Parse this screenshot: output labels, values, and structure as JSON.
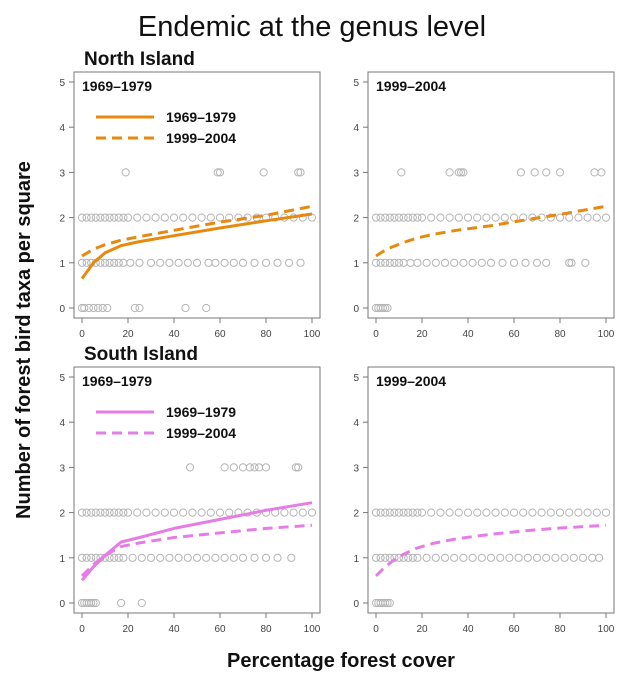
{
  "title": "Endemic at the genus level",
  "xlabel": "Percentage  forest cover",
  "ylabel": "Number of forest bird taxa per square",
  "colors": {
    "north": "#e8890f",
    "south": "#e67de6",
    "points": "#b4b4b4"
  },
  "chart_data": [
    {
      "type": "scatter",
      "island": "North Island",
      "period": "1969–1979",
      "xlim": [
        0,
        100
      ],
      "ylim": [
        0,
        5
      ],
      "xticks": [
        0,
        20,
        40,
        60,
        80,
        100
      ],
      "yticks": [
        0,
        1,
        2,
        3,
        4,
        5
      ],
      "legend": [
        "1969–1979",
        "1999–2004"
      ],
      "points": [
        [
          0,
          2
        ],
        [
          2,
          2
        ],
        [
          4,
          2
        ],
        [
          6,
          2
        ],
        [
          8,
          2
        ],
        [
          10,
          2
        ],
        [
          12,
          2
        ],
        [
          14,
          2
        ],
        [
          16,
          2
        ],
        [
          18,
          2
        ],
        [
          20,
          2
        ],
        [
          24,
          2
        ],
        [
          28,
          2
        ],
        [
          32,
          2
        ],
        [
          36,
          2
        ],
        [
          40,
          2
        ],
        [
          44,
          2
        ],
        [
          48,
          2
        ],
        [
          52,
          2
        ],
        [
          56,
          2
        ],
        [
          60,
          2
        ],
        [
          64,
          2
        ],
        [
          68,
          2
        ],
        [
          72,
          2
        ],
        [
          76,
          2
        ],
        [
          80,
          2
        ],
        [
          84,
          2
        ],
        [
          88,
          2
        ],
        [
          92,
          2
        ],
        [
          96,
          2
        ],
        [
          100,
          2
        ],
        [
          0,
          1
        ],
        [
          2,
          1
        ],
        [
          4,
          1
        ],
        [
          6,
          1
        ],
        [
          8,
          1
        ],
        [
          10,
          1
        ],
        [
          12,
          1
        ],
        [
          14,
          1
        ],
        [
          16,
          1
        ],
        [
          18,
          1
        ],
        [
          21,
          1
        ],
        [
          25,
          1
        ],
        [
          30,
          1
        ],
        [
          34,
          1
        ],
        [
          38,
          1
        ],
        [
          42,
          1
        ],
        [
          46,
          1
        ],
        [
          50,
          1
        ],
        [
          55,
          1
        ],
        [
          58,
          1
        ],
        [
          62,
          1
        ],
        [
          66,
          1
        ],
        [
          70,
          1
        ],
        [
          75,
          1
        ],
        [
          80,
          1
        ],
        [
          85,
          1
        ],
        [
          90,
          1
        ],
        [
          95,
          1
        ],
        [
          0,
          0
        ],
        [
          1,
          0
        ],
        [
          3,
          0
        ],
        [
          5,
          0
        ],
        [
          7,
          0
        ],
        [
          9,
          0
        ],
        [
          11,
          0
        ],
        [
          23,
          0
        ],
        [
          25,
          0
        ],
        [
          45,
          0
        ],
        [
          54,
          0
        ],
        [
          19,
          3
        ],
        [
          59,
          3
        ],
        [
          60,
          3
        ],
        [
          79,
          3
        ],
        [
          94,
          3
        ],
        [
          95,
          3
        ]
      ],
      "series": [
        {
          "name": "1969–1979",
          "style": "solid",
          "x": [
            0,
            5,
            10,
            17,
            25,
            40,
            60,
            80,
            100
          ],
          "y": [
            0.65,
            1.0,
            1.22,
            1.38,
            1.47,
            1.6,
            1.77,
            1.93,
            2.08
          ]
        },
        {
          "name": "1999–2004",
          "style": "dashed",
          "x": [
            0,
            5,
            10,
            17,
            25,
            40,
            60,
            80,
            100
          ],
          "y": [
            1.15,
            1.3,
            1.4,
            1.5,
            1.58,
            1.72,
            1.9,
            2.05,
            2.25
          ]
        }
      ]
    },
    {
      "type": "scatter",
      "island": "",
      "period": "1999–2004",
      "xlim": [
        0,
        100
      ],
      "ylim": [
        0,
        5
      ],
      "xticks": [
        0,
        20,
        40,
        60,
        80,
        100
      ],
      "yticks": [
        0,
        1,
        2,
        3,
        4,
        5
      ],
      "legend": [],
      "points": [
        [
          0,
          2
        ],
        [
          2,
          2
        ],
        [
          4,
          2
        ],
        [
          6,
          2
        ],
        [
          8,
          2
        ],
        [
          10,
          2
        ],
        [
          12,
          2
        ],
        [
          14,
          2
        ],
        [
          16,
          2
        ],
        [
          18,
          2
        ],
        [
          20,
          2
        ],
        [
          24,
          2
        ],
        [
          28,
          2
        ],
        [
          32,
          2
        ],
        [
          36,
          2
        ],
        [
          40,
          2
        ],
        [
          44,
          2
        ],
        [
          48,
          2
        ],
        [
          52,
          2
        ],
        [
          56,
          2
        ],
        [
          60,
          2
        ],
        [
          64,
          2
        ],
        [
          68,
          2
        ],
        [
          72,
          2
        ],
        [
          76,
          2
        ],
        [
          80,
          2
        ],
        [
          84,
          2
        ],
        [
          88,
          2
        ],
        [
          92,
          2
        ],
        [
          96,
          2
        ],
        [
          100,
          2
        ],
        [
          0,
          1
        ],
        [
          2,
          1
        ],
        [
          4,
          1
        ],
        [
          6,
          1
        ],
        [
          8,
          1
        ],
        [
          10,
          1
        ],
        [
          12,
          1
        ],
        [
          15,
          1
        ],
        [
          18,
          1
        ],
        [
          22,
          1
        ],
        [
          26,
          1
        ],
        [
          30,
          1
        ],
        [
          34,
          1
        ],
        [
          38,
          1
        ],
        [
          42,
          1
        ],
        [
          46,
          1
        ],
        [
          50,
          1
        ],
        [
          55,
          1
        ],
        [
          60,
          1
        ],
        [
          65,
          1
        ],
        [
          70,
          1
        ],
        [
          74,
          1
        ],
        [
          84,
          1
        ],
        [
          85,
          1
        ],
        [
          91,
          1
        ],
        [
          0,
          0
        ],
        [
          1,
          0
        ],
        [
          2,
          0
        ],
        [
          3,
          0
        ],
        [
          4,
          0
        ],
        [
          5,
          0
        ],
        [
          11,
          3
        ],
        [
          32,
          3
        ],
        [
          36,
          3
        ],
        [
          37,
          3
        ],
        [
          38,
          3
        ],
        [
          63,
          3
        ],
        [
          69,
          3
        ],
        [
          74,
          3
        ],
        [
          80,
          3
        ],
        [
          95,
          3
        ],
        [
          98,
          3
        ]
      ],
      "series": [
        {
          "name": "1999–2004",
          "style": "dashed",
          "x": [
            0,
            3,
            7,
            12,
            18,
            25,
            35,
            50,
            65,
            80,
            100
          ],
          "y": [
            1.15,
            1.25,
            1.35,
            1.45,
            1.55,
            1.63,
            1.72,
            1.82,
            1.95,
            2.07,
            2.25
          ]
        }
      ]
    },
    {
      "type": "scatter",
      "island": "South Island",
      "period": "1969–1979",
      "xlim": [
        0,
        100
      ],
      "ylim": [
        0,
        5
      ],
      "xticks": [
        0,
        20,
        40,
        60,
        80,
        100
      ],
      "yticks": [
        0,
        1,
        2,
        3,
        4,
        5
      ],
      "legend": [
        "1969–1979",
        "1999–2004"
      ],
      "points": [
        [
          0,
          2
        ],
        [
          2,
          2
        ],
        [
          4,
          2
        ],
        [
          6,
          2
        ],
        [
          8,
          2
        ],
        [
          10,
          2
        ],
        [
          12,
          2
        ],
        [
          14,
          2
        ],
        [
          16,
          2
        ],
        [
          18,
          2
        ],
        [
          20,
          2
        ],
        [
          24,
          2
        ],
        [
          28,
          2
        ],
        [
          32,
          2
        ],
        [
          36,
          2
        ],
        [
          40,
          2
        ],
        [
          44,
          2
        ],
        [
          48,
          2
        ],
        [
          52,
          2
        ],
        [
          56,
          2
        ],
        [
          60,
          2
        ],
        [
          64,
          2
        ],
        [
          68,
          2
        ],
        [
          72,
          2
        ],
        [
          76,
          2
        ],
        [
          80,
          2
        ],
        [
          84,
          2
        ],
        [
          88,
          2
        ],
        [
          92,
          2
        ],
        [
          96,
          2
        ],
        [
          100,
          2
        ],
        [
          0,
          1
        ],
        [
          2,
          1
        ],
        [
          4,
          1
        ],
        [
          6,
          1
        ],
        [
          8,
          1
        ],
        [
          10,
          1
        ],
        [
          12,
          1
        ],
        [
          14,
          1
        ],
        [
          16,
          1
        ],
        [
          18,
          1
        ],
        [
          22,
          1
        ],
        [
          26,
          1
        ],
        [
          30,
          1
        ],
        [
          34,
          1
        ],
        [
          38,
          1
        ],
        [
          42,
          1
        ],
        [
          46,
          1
        ],
        [
          50,
          1
        ],
        [
          54,
          1
        ],
        [
          58,
          1
        ],
        [
          62,
          1
        ],
        [
          66,
          1
        ],
        [
          70,
          1
        ],
        [
          75,
          1
        ],
        [
          80,
          1
        ],
        [
          85,
          1
        ],
        [
          91,
          1
        ],
        [
          0,
          0
        ],
        [
          1,
          0
        ],
        [
          2,
          0
        ],
        [
          3,
          0
        ],
        [
          4,
          0
        ],
        [
          5,
          0
        ],
        [
          6,
          0
        ],
        [
          17,
          0
        ],
        [
          26,
          0
        ],
        [
          47,
          3
        ],
        [
          62,
          3
        ],
        [
          66,
          3
        ],
        [
          70,
          3
        ],
        [
          73,
          3
        ],
        [
          75,
          3
        ],
        [
          77,
          3
        ],
        [
          80,
          3
        ],
        [
          93,
          3
        ],
        [
          94,
          3
        ]
      ],
      "series": [
        {
          "name": "1969–1979",
          "style": "solid",
          "x": [
            0,
            5,
            10,
            17,
            25,
            40,
            60,
            80,
            100
          ],
          "y": [
            0.5,
            0.8,
            1.05,
            1.35,
            1.45,
            1.65,
            1.85,
            2.05,
            2.22
          ]
        },
        {
          "name": "1999–2004",
          "style": "dashed",
          "x": [
            0,
            5,
            10,
            17,
            25,
            40,
            60,
            80,
            100
          ],
          "y": [
            0.6,
            0.85,
            1.05,
            1.25,
            1.33,
            1.45,
            1.55,
            1.65,
            1.72
          ]
        }
      ]
    },
    {
      "type": "scatter",
      "island": "",
      "period": "1999–2004",
      "xlim": [
        0,
        100
      ],
      "ylim": [
        0,
        5
      ],
      "xticks": [
        0,
        20,
        40,
        60,
        80,
        100
      ],
      "yticks": [
        0,
        1,
        2,
        3,
        4,
        5
      ],
      "legend": [],
      "points": [
        [
          0,
          2
        ],
        [
          2,
          2
        ],
        [
          4,
          2
        ],
        [
          6,
          2
        ],
        [
          8,
          2
        ],
        [
          10,
          2
        ],
        [
          12,
          2
        ],
        [
          14,
          2
        ],
        [
          16,
          2
        ],
        [
          18,
          2
        ],
        [
          20,
          2
        ],
        [
          24,
          2
        ],
        [
          28,
          2
        ],
        [
          32,
          2
        ],
        [
          36,
          2
        ],
        [
          40,
          2
        ],
        [
          44,
          2
        ],
        [
          48,
          2
        ],
        [
          52,
          2
        ],
        [
          56,
          2
        ],
        [
          60,
          2
        ],
        [
          64,
          2
        ],
        [
          68,
          2
        ],
        [
          72,
          2
        ],
        [
          76,
          2
        ],
        [
          80,
          2
        ],
        [
          84,
          2
        ],
        [
          88,
          2
        ],
        [
          92,
          2
        ],
        [
          96,
          2
        ],
        [
          100,
          2
        ],
        [
          0,
          1
        ],
        [
          2,
          1
        ],
        [
          4,
          1
        ],
        [
          6,
          1
        ],
        [
          8,
          1
        ],
        [
          10,
          1
        ],
        [
          12,
          1
        ],
        [
          14,
          1
        ],
        [
          16,
          1
        ],
        [
          18,
          1
        ],
        [
          22,
          1
        ],
        [
          26,
          1
        ],
        [
          30,
          1
        ],
        [
          34,
          1
        ],
        [
          38,
          1
        ],
        [
          42,
          1
        ],
        [
          46,
          1
        ],
        [
          50,
          1
        ],
        [
          54,
          1
        ],
        [
          58,
          1
        ],
        [
          62,
          1
        ],
        [
          66,
          1
        ],
        [
          70,
          1
        ],
        [
          74,
          1
        ],
        [
          78,
          1
        ],
        [
          82,
          1
        ],
        [
          86,
          1
        ],
        [
          90,
          1
        ],
        [
          94,
          1
        ],
        [
          97,
          1
        ],
        [
          0,
          0
        ],
        [
          1,
          0
        ],
        [
          2,
          0
        ],
        [
          3,
          0
        ],
        [
          4,
          0
        ],
        [
          5,
          0
        ],
        [
          6,
          0
        ]
      ],
      "series": [
        {
          "name": "1999–2004",
          "style": "dashed",
          "x": [
            0,
            3,
            7,
            12,
            18,
            25,
            35,
            50,
            65,
            80,
            100
          ],
          "y": [
            0.6,
            0.75,
            0.92,
            1.08,
            1.22,
            1.32,
            1.42,
            1.52,
            1.6,
            1.66,
            1.72
          ]
        }
      ]
    }
  ]
}
